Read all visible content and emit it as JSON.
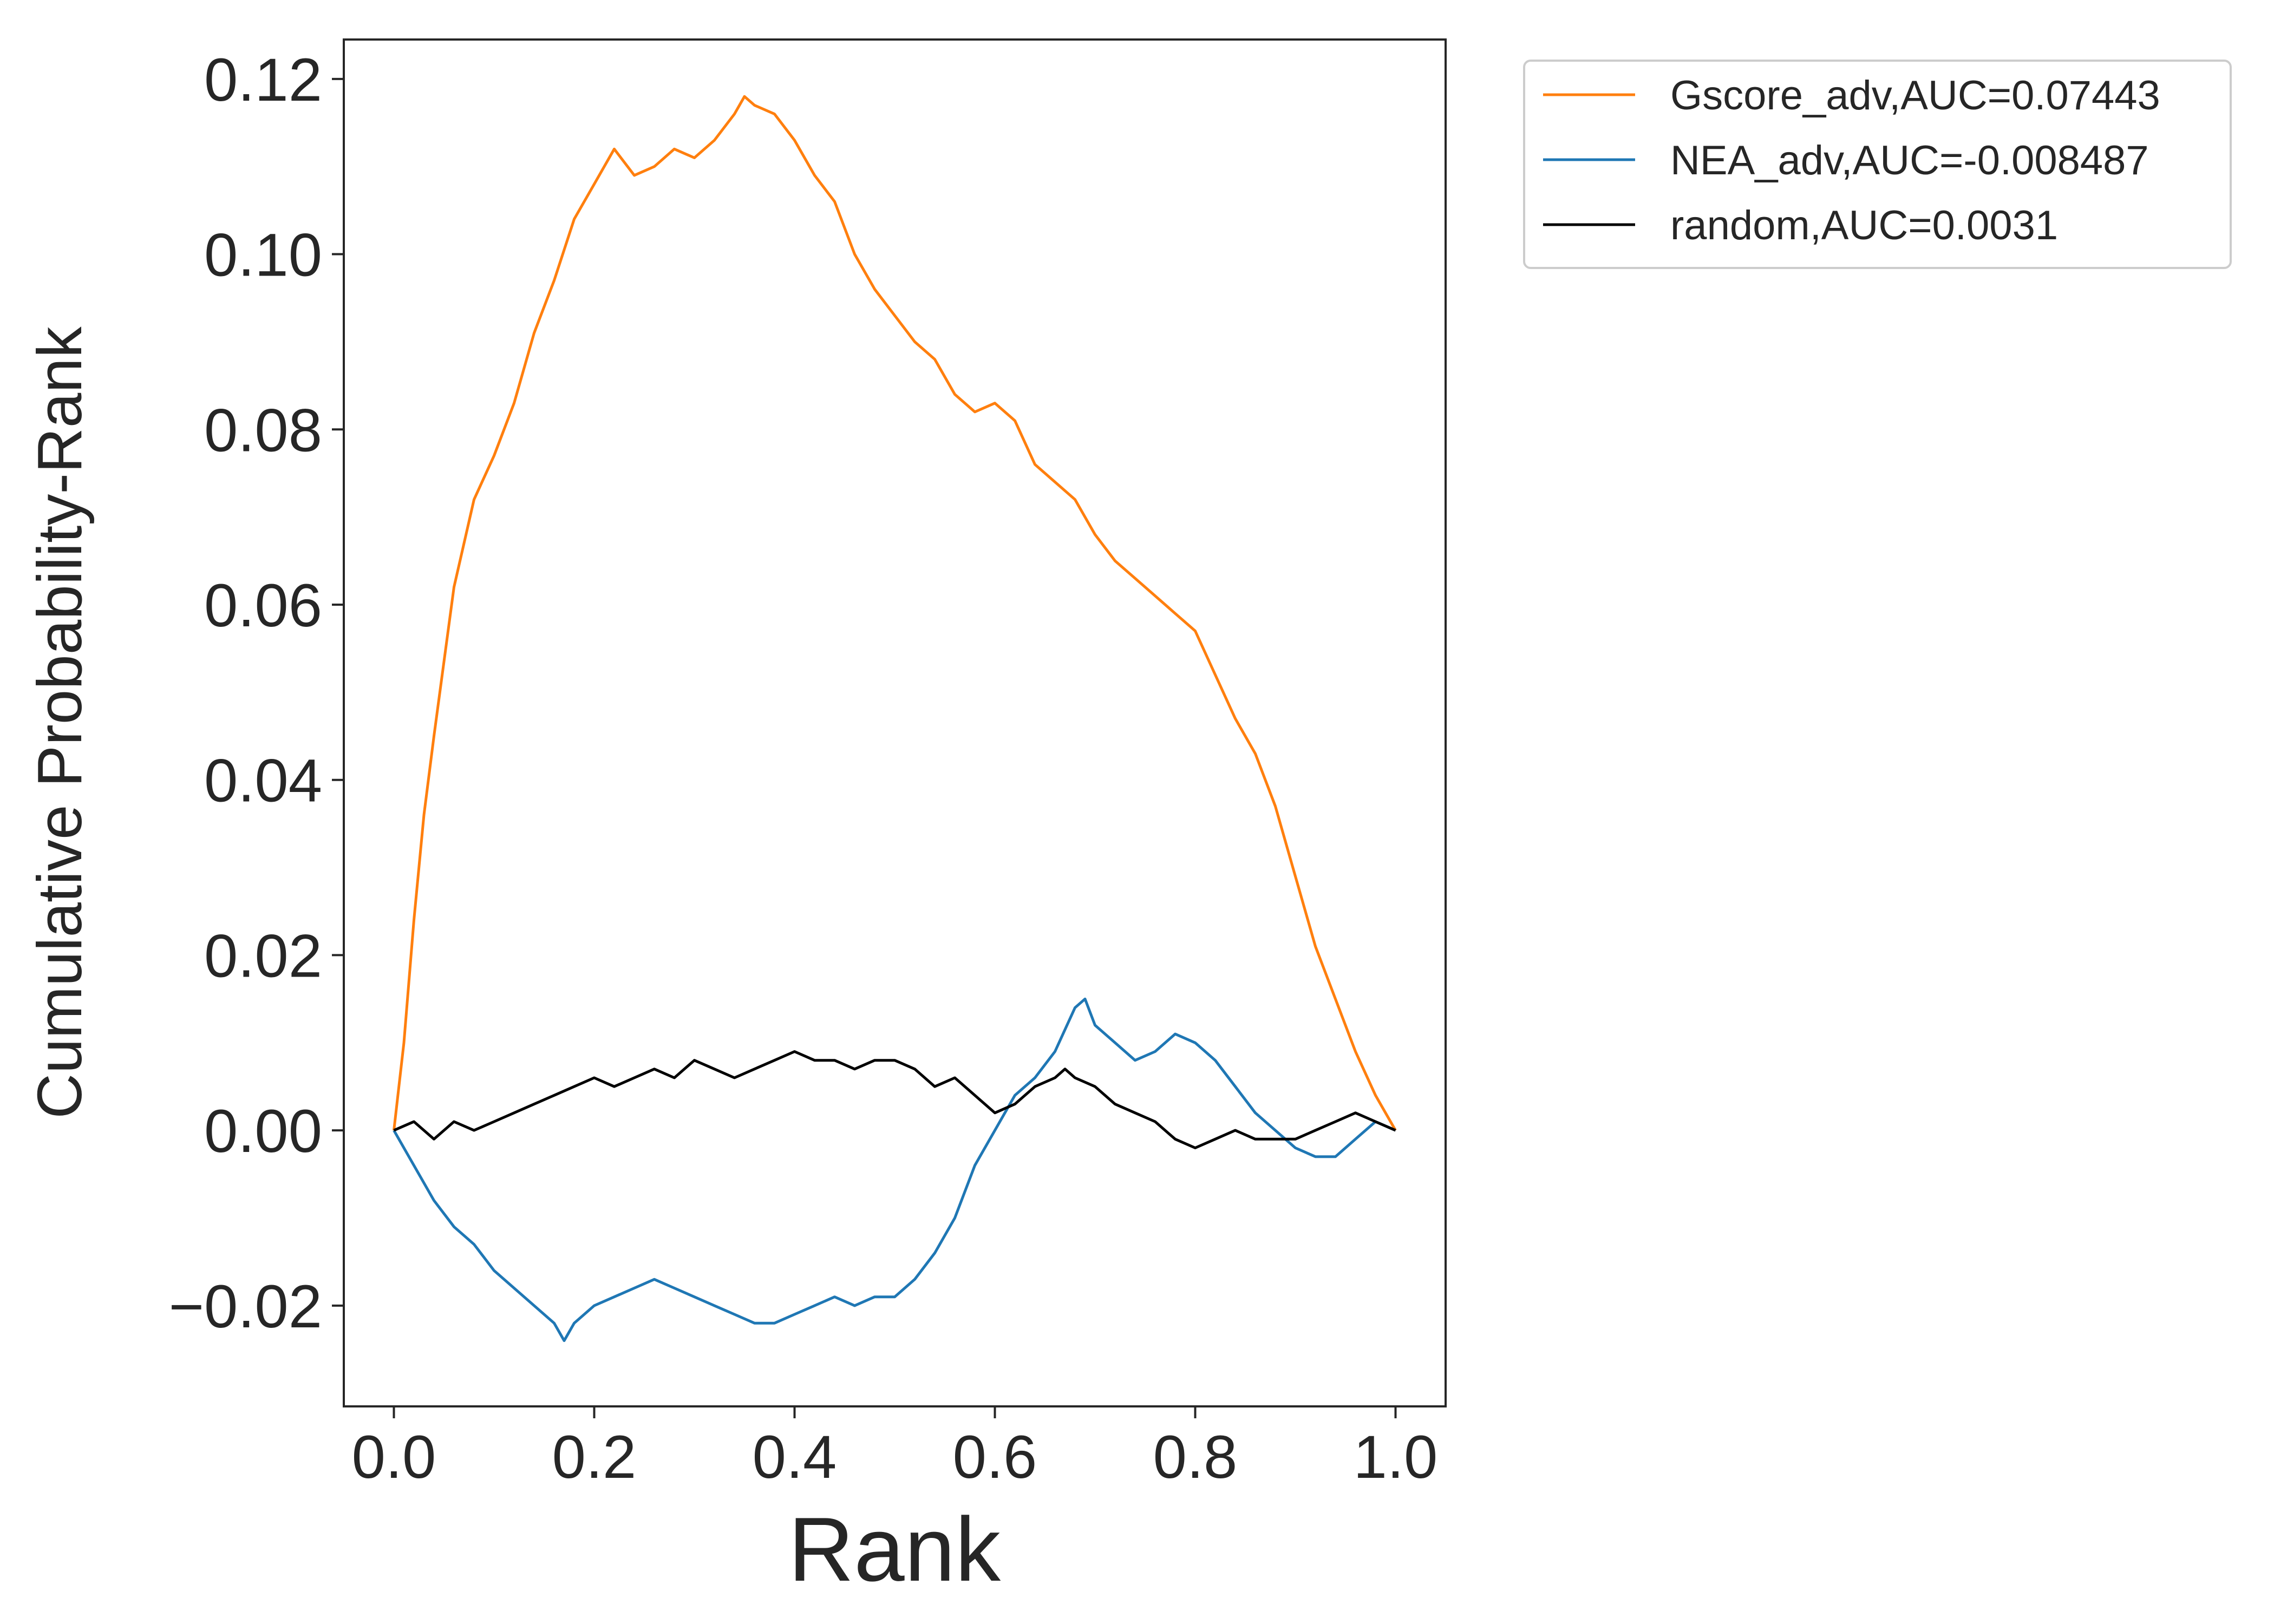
{
  "chart_data": {
    "type": "line",
    "xlabel": "Rank",
    "ylabel": "Cumulative Probability-Rank",
    "xlim": [
      -0.05,
      1.05
    ],
    "ylim": [
      -0.0315,
      0.1245
    ],
    "xticks": [
      0.0,
      0.2,
      0.4,
      0.6,
      0.8,
      1.0
    ],
    "xtick_labels": [
      "0.0",
      "0.2",
      "0.4",
      "0.6",
      "0.8",
      "1.0"
    ],
    "yticks": [
      -0.02,
      0.0,
      0.02,
      0.04,
      0.06,
      0.08,
      0.1,
      0.12
    ],
    "ytick_labels": [
      "−0.02",
      "0.00",
      "0.02",
      "0.04",
      "0.06",
      "0.08",
      "0.10",
      "0.12"
    ],
    "grid": false,
    "legend_position": "outside-top-right",
    "series": [
      {
        "name": "Gscore_adv,AUC=0.07443",
        "color": "#ff7f0e",
        "x": [
          0.0,
          0.01,
          0.02,
          0.03,
          0.04,
          0.06,
          0.08,
          0.1,
          0.12,
          0.14,
          0.16,
          0.18,
          0.2,
          0.22,
          0.24,
          0.26,
          0.28,
          0.3,
          0.32,
          0.34,
          0.35,
          0.36,
          0.38,
          0.4,
          0.42,
          0.44,
          0.46,
          0.48,
          0.5,
          0.52,
          0.54,
          0.56,
          0.58,
          0.6,
          0.62,
          0.64,
          0.66,
          0.68,
          0.7,
          0.72,
          0.74,
          0.76,
          0.78,
          0.8,
          0.82,
          0.84,
          0.86,
          0.88,
          0.9,
          0.92,
          0.94,
          0.96,
          0.98,
          1.0
        ],
        "y": [
          0.0,
          0.01,
          0.024,
          0.036,
          0.045,
          0.062,
          0.072,
          0.077,
          0.083,
          0.091,
          0.097,
          0.104,
          0.108,
          0.112,
          0.109,
          0.11,
          0.112,
          0.111,
          0.113,
          0.116,
          0.118,
          0.117,
          0.116,
          0.113,
          0.109,
          0.106,
          0.1,
          0.096,
          0.093,
          0.09,
          0.088,
          0.084,
          0.082,
          0.083,
          0.081,
          0.076,
          0.074,
          0.072,
          0.068,
          0.065,
          0.063,
          0.061,
          0.059,
          0.057,
          0.052,
          0.047,
          0.043,
          0.037,
          0.029,
          0.021,
          0.015,
          0.009,
          0.004,
          0.0
        ]
      },
      {
        "name": "NEA_adv,AUC=-0.008487",
        "color": "#1f77b4",
        "x": [
          0.0,
          0.02,
          0.04,
          0.06,
          0.08,
          0.1,
          0.12,
          0.14,
          0.16,
          0.17,
          0.18,
          0.2,
          0.22,
          0.24,
          0.26,
          0.28,
          0.3,
          0.32,
          0.34,
          0.36,
          0.38,
          0.4,
          0.42,
          0.44,
          0.46,
          0.48,
          0.5,
          0.52,
          0.54,
          0.56,
          0.58,
          0.6,
          0.62,
          0.64,
          0.66,
          0.68,
          0.69,
          0.7,
          0.72,
          0.74,
          0.76,
          0.78,
          0.8,
          0.82,
          0.84,
          0.86,
          0.88,
          0.9,
          0.92,
          0.94,
          0.96,
          0.98,
          1.0
        ],
        "y": [
          0.0,
          -0.004,
          -0.008,
          -0.011,
          -0.013,
          -0.016,
          -0.018,
          -0.02,
          -0.022,
          -0.024,
          -0.022,
          -0.02,
          -0.019,
          -0.018,
          -0.017,
          -0.018,
          -0.019,
          -0.02,
          -0.021,
          -0.022,
          -0.022,
          -0.021,
          -0.02,
          -0.019,
          -0.02,
          -0.019,
          -0.019,
          -0.017,
          -0.014,
          -0.01,
          -0.004,
          0.0,
          0.004,
          0.006,
          0.009,
          0.014,
          0.015,
          0.012,
          0.01,
          0.008,
          0.009,
          0.011,
          0.01,
          0.008,
          0.005,
          0.002,
          0.0,
          -0.002,
          -0.003,
          -0.003,
          -0.001,
          0.001,
          0.0
        ]
      },
      {
        "name": "random,AUC=0.0031",
        "color": "#000000",
        "x": [
          0.0,
          0.02,
          0.04,
          0.06,
          0.08,
          0.1,
          0.12,
          0.14,
          0.16,
          0.18,
          0.2,
          0.22,
          0.24,
          0.26,
          0.28,
          0.3,
          0.32,
          0.34,
          0.36,
          0.38,
          0.4,
          0.42,
          0.44,
          0.46,
          0.48,
          0.5,
          0.52,
          0.54,
          0.56,
          0.58,
          0.6,
          0.62,
          0.64,
          0.66,
          0.67,
          0.68,
          0.7,
          0.72,
          0.74,
          0.76,
          0.78,
          0.8,
          0.82,
          0.84,
          0.86,
          0.88,
          0.9,
          0.92,
          0.94,
          0.96,
          0.98,
          1.0
        ],
        "y": [
          0.0,
          0.001,
          -0.001,
          0.001,
          0.0,
          0.001,
          0.002,
          0.003,
          0.004,
          0.005,
          0.006,
          0.005,
          0.006,
          0.007,
          0.006,
          0.008,
          0.007,
          0.006,
          0.007,
          0.008,
          0.009,
          0.008,
          0.008,
          0.007,
          0.008,
          0.008,
          0.007,
          0.005,
          0.006,
          0.004,
          0.002,
          0.003,
          0.005,
          0.006,
          0.007,
          0.006,
          0.005,
          0.003,
          0.002,
          0.001,
          -0.001,
          -0.002,
          -0.001,
          0.0,
          -0.001,
          -0.001,
          -0.001,
          0.0,
          0.001,
          0.002,
          0.001,
          0.0
        ]
      }
    ]
  }
}
